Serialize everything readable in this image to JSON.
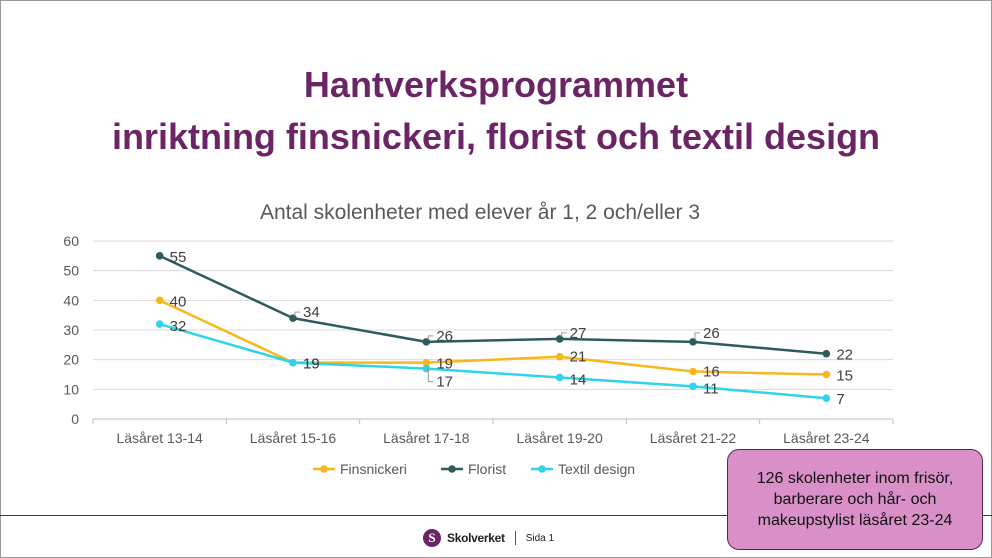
{
  "slide": {
    "title_line1": "Hantverksprogrammet",
    "title_line2": "inriktning finsnickeri, florist och textil design",
    "footer_logo": "Skolverket",
    "footer_logo_letter": "S",
    "footer_page": "Sida 1",
    "callout_text": "126 skolenheter inom frisör, barberare och hår- och makeupstylist läsåret 23-24",
    "colors": {
      "title": "#6b2464",
      "callout_bg": "#d990c9"
    }
  },
  "chart_data": {
    "type": "line",
    "title": "Antal skolenheter med elever år 1, 2 och/eller 3",
    "categories": [
      "Läsåret 13-14",
      "Läsåret 15-16",
      "Läsåret 17-18",
      "Läsåret 19-20",
      "Läsåret 21-22",
      "Läsåret 23-24"
    ],
    "ylim": [
      0,
      60
    ],
    "yticks": [
      0,
      10,
      20,
      30,
      40,
      50,
      60
    ],
    "grid": true,
    "legend": "bottom",
    "series": [
      {
        "name": "Finsnickeri",
        "color": "#f7b81b",
        "values": [
          40,
          19,
          19,
          21,
          16,
          15
        ]
      },
      {
        "name": "Florist",
        "color": "#2e5c5c",
        "values": [
          55,
          34,
          26,
          27,
          26,
          22
        ]
      },
      {
        "name": "Textil design",
        "color": "#2ed3ec",
        "values": [
          32,
          19,
          17,
          14,
          11,
          7
        ]
      }
    ]
  }
}
